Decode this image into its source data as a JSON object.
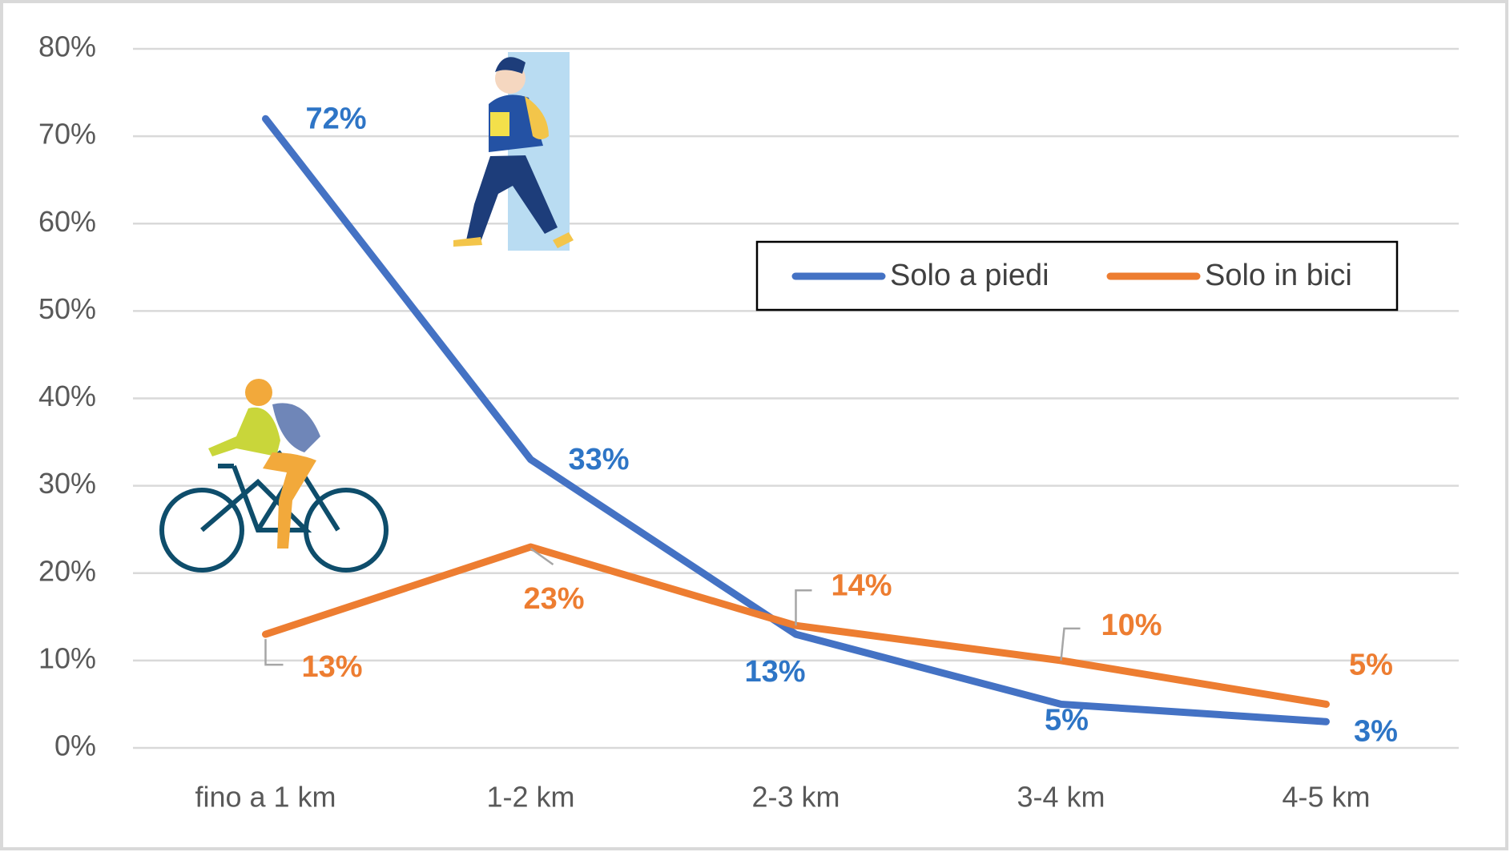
{
  "chart_data": {
    "type": "line",
    "categories": [
      "fino a 1 km",
      "1-2 km",
      "2-3 km",
      "3-4 km",
      "4-5 km"
    ],
    "series": [
      {
        "name": "Solo a piedi",
        "color": "#4472c4",
        "label_color": "#2e75c6",
        "values": [
          72,
          33,
          13,
          5,
          3
        ],
        "value_labels": [
          "72%",
          "33%",
          "13%",
          "5%",
          "3%"
        ]
      },
      {
        "name": "Solo in bici",
        "color": "#ed7d31",
        "label_color": "#ed7d31",
        "values": [
          13,
          23,
          14,
          10,
          5
        ],
        "value_labels": [
          "13%",
          "23%",
          "14%",
          "10%",
          "5%"
        ]
      }
    ],
    "ylim": [
      0,
      80
    ],
    "yticks": [
      {
        "value": 0,
        "label": "0%"
      },
      {
        "value": 10,
        "label": "10%"
      },
      {
        "value": 20,
        "label": "20%"
      },
      {
        "value": 30,
        "label": "30%"
      },
      {
        "value": 40,
        "label": "40%"
      },
      {
        "value": 50,
        "label": "50%"
      },
      {
        "value": 60,
        "label": "60%"
      },
      {
        "value": 70,
        "label": "70%"
      },
      {
        "value": 80,
        "label": "80%"
      }
    ],
    "grid": true
  }
}
